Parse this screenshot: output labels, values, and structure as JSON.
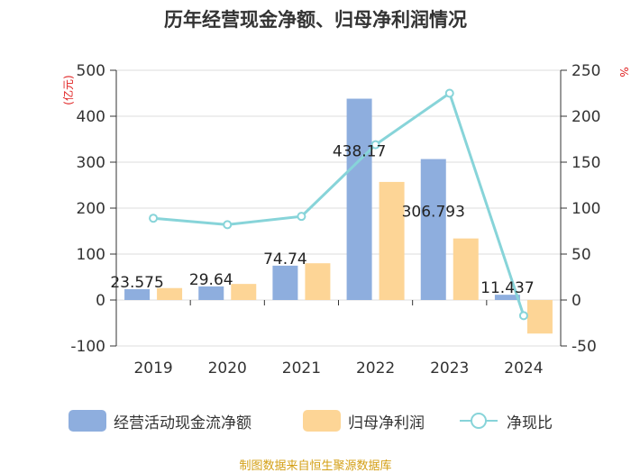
{
  "title": "历年经营现金净额、归母净利润情况",
  "source": "制图数据来自恒生聚源数据库",
  "chart_data": {
    "type": "bar",
    "categories": [
      "2019",
      "2020",
      "2021",
      "2022",
      "2023",
      "2024"
    ],
    "series": [
      {
        "name": "经营活动现金流净额",
        "kind": "bar",
        "axis": "left",
        "color": "#8eaede",
        "values": [
          23.575,
          29.64,
          74.74,
          438.17,
          306.793,
          11.437
        ],
        "labels": [
          "23.575",
          "29.64",
          "74.74",
          "438.17",
          "306.793",
          "11.437"
        ]
      },
      {
        "name": "归母净利润",
        "kind": "bar",
        "axis": "left",
        "color": "#fdd596",
        "values": [
          26,
          35,
          80,
          257,
          134,
          -73
        ]
      },
      {
        "name": "净现比",
        "kind": "line",
        "axis": "right",
        "color": "#87d4d9",
        "values": [
          89,
          82,
          91,
          169,
          225,
          -17
        ]
      }
    ],
    "ylabel_left": "(亿元)",
    "ylabel_right": "%",
    "ylim_left": [
      -100,
      500
    ],
    "ylim_right": [
      -50,
      250
    ],
    "yticks_left": [
      "-100",
      "0",
      "100",
      "200",
      "300",
      "400",
      "500"
    ],
    "yticks_right": [
      "-50",
      "0",
      "50",
      "100",
      "150",
      "200",
      "250"
    ],
    "grid": true,
    "legend_position": "bottom"
  }
}
